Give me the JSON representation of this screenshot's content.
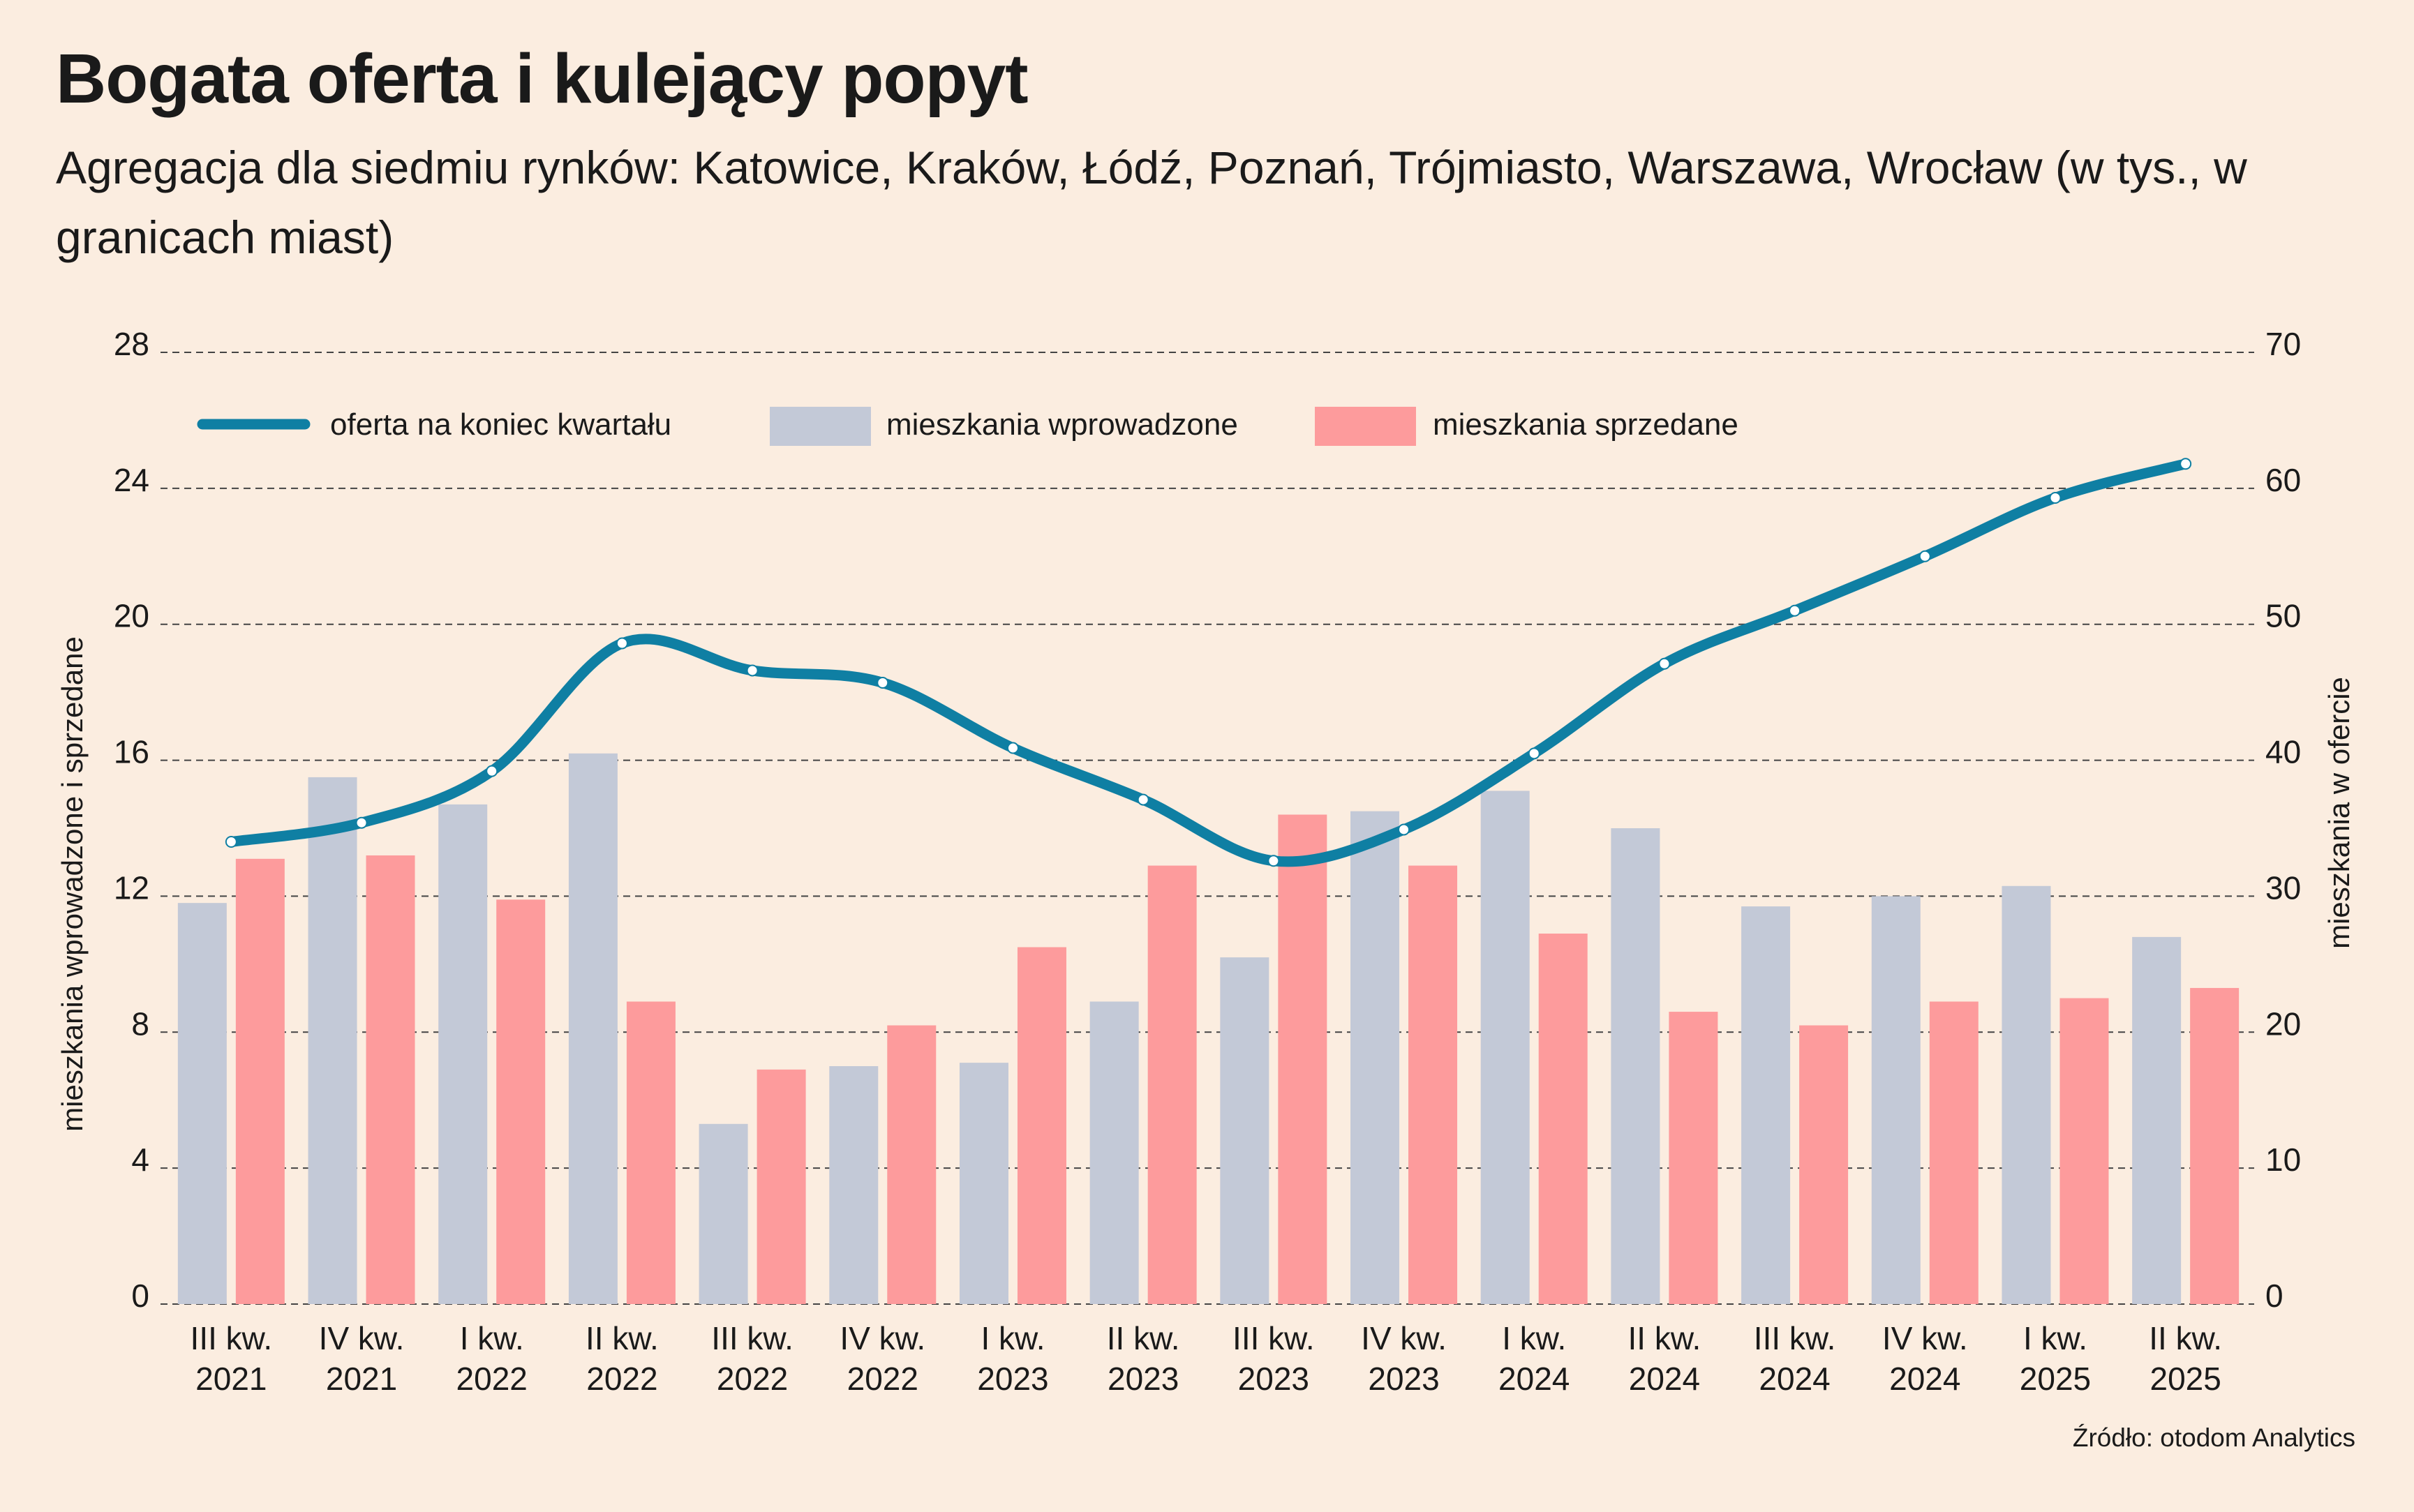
{
  "title": "Bogata oferta i kulejący popyt",
  "subtitle": "Agregacja dla siedmiu rynków: Katowice, Kraków, Łódź, Poznań, Trójmiasto, Warszawa, Wrocław (w tys., w granicach miast)",
  "source": "Źródło: otodom Analytics",
  "colors": {
    "background": "#fbede0",
    "line": "#0f7fa3",
    "introduced": "#c3c9d7",
    "sold": "#fd9b9c",
    "grid": "#444444"
  },
  "chart_data": {
    "type": "bar",
    "categories": [
      [
        "III kw.",
        "2021"
      ],
      [
        "IV kw.",
        "2021"
      ],
      [
        "I kw.",
        "2022"
      ],
      [
        "II kw.",
        "2022"
      ],
      [
        "III kw.",
        "2022"
      ],
      [
        "IV kw.",
        "2022"
      ],
      [
        "I kw.",
        "2023"
      ],
      [
        "II kw.",
        "2023"
      ],
      [
        "III kw.",
        "2023"
      ],
      [
        "IV kw.",
        "2023"
      ],
      [
        "I kw.",
        "2024"
      ],
      [
        "II kw.",
        "2024"
      ],
      [
        "III kw.",
        "2024"
      ],
      [
        "IV kw.",
        "2024"
      ],
      [
        "I kw.",
        "2025"
      ],
      [
        "II kw.",
        "2025"
      ]
    ],
    "series": [
      {
        "name": "mieszkania wprowadzone",
        "type": "bar",
        "axis": "left",
        "values": [
          11.8,
          15.5,
          14.7,
          16.2,
          5.3,
          7.0,
          7.1,
          8.9,
          10.2,
          14.5,
          15.1,
          14.0,
          11.7,
          12.0,
          12.3,
          10.8
        ]
      },
      {
        "name": "mieszkania sprzedane",
        "type": "bar",
        "axis": "left",
        "values": [
          13.1,
          13.2,
          11.9,
          8.9,
          6.9,
          8.2,
          10.5,
          12.9,
          14.4,
          12.9,
          10.9,
          8.6,
          8.2,
          8.9,
          9.0,
          9.3
        ]
      },
      {
        "name": "oferta na koniec kwartału",
        "type": "line",
        "axis": "right",
        "values": [
          34.0,
          35.4,
          39.2,
          48.6,
          46.6,
          45.7,
          40.9,
          37.1,
          32.6,
          34.9,
          40.5,
          47.1,
          51.0,
          55.0,
          59.3,
          61.8
        ]
      }
    ],
    "y_left": {
      "label": "mieszkania wprowadzone i sprzedane",
      "ylim": [
        0,
        28
      ],
      "ticks": [
        0,
        4,
        8,
        12,
        16,
        20,
        24,
        28
      ]
    },
    "y_right": {
      "label": "mieszkania w ofercie",
      "ylim": [
        0,
        70
      ],
      "ticks": [
        0,
        10,
        20,
        30,
        40,
        50,
        60,
        70
      ]
    },
    "grid": true,
    "legend_placement": "top-left"
  }
}
